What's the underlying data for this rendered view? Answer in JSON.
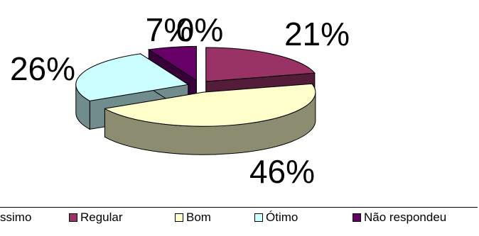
{
  "chart_data": {
    "type": "pie",
    "variant": "3d-exploded",
    "title": "",
    "categories": [
      "Péssimo",
      "Regular",
      "Bom",
      "Ótimo",
      "Não respondeu"
    ],
    "values": [
      0,
      21,
      46,
      26,
      7
    ],
    "data_labels": [
      "0%",
      "21%",
      "46%",
      "26%",
      "7%"
    ],
    "legend_labels": [
      "ssimo",
      "Regular",
      "Bom",
      "Ótimo",
      "Não respondeu"
    ],
    "colors": [
      "#9999ff",
      "#993366",
      "#ffffcc",
      "#ccffff",
      "#660066"
    ],
    "legend_position": "bottom"
  }
}
